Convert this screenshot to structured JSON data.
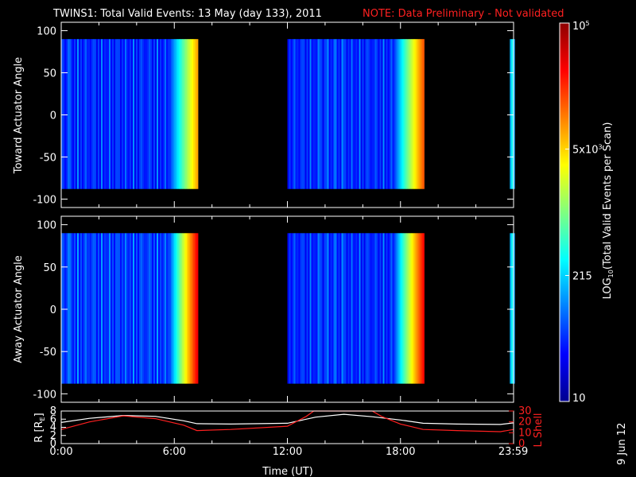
{
  "header": {
    "title": "TWINS1: Total Valid Events: 13 May (day 133), 2011",
    "note": "NOTE: Data Preliminary - Not validated"
  },
  "colors": {
    "background": "#000000",
    "foreground": "#ffffff",
    "note": "#ff2020",
    "orbit_r": "#ffffff",
    "orbit_lshell": "#ff2020"
  },
  "side_label": "9 Jun 12",
  "chart_data": [
    {
      "type": "heatmap",
      "panel": "toward",
      "ylabel": "Toward Actuator Angle",
      "ylim": [
        -110,
        110
      ],
      "yticks": [
        100,
        50,
        0,
        -50,
        -100
      ],
      "ytick_labels": [
        "100",
        "50",
        "0",
        "-50",
        "-100"
      ],
      "xlim": [
        0,
        24
      ],
      "data_angle_range": [
        -88,
        90
      ],
      "segments": [
        {
          "start": 0.0,
          "end": 7.2,
          "ramp_start": 5.7,
          "base": 0.15,
          "peak": 0.72
        },
        {
          "start": 12.0,
          "end": 19.2,
          "ramp_start": 17.6,
          "base": 0.15,
          "peak": 0.8
        },
        {
          "start": 23.8,
          "end": 24.0,
          "ramp_start": 24.0,
          "base": 0.3,
          "peak": 0.3
        }
      ]
    },
    {
      "type": "heatmap",
      "panel": "away",
      "ylabel": "Away Actuator Angle",
      "ylim": [
        -110,
        110
      ],
      "yticks": [
        100,
        50,
        0,
        -50,
        -100
      ],
      "ytick_labels": [
        "100",
        "50",
        "0",
        "-50",
        "-100"
      ],
      "xlim": [
        0,
        24
      ],
      "data_angle_range": [
        -88,
        90
      ],
      "segments": [
        {
          "start": 0.0,
          "end": 7.2,
          "ramp_start": 5.7,
          "base": 0.17,
          "peak": 0.9
        },
        {
          "start": 12.0,
          "end": 19.2,
          "ramp_start": 17.6,
          "base": 0.15,
          "peak": 0.88
        },
        {
          "start": 23.8,
          "end": 24.0,
          "ramp_start": 24.0,
          "base": 0.3,
          "peak": 0.3
        }
      ]
    },
    {
      "type": "line",
      "panel": "orbit",
      "ylabel": "R [R",
      "ylabel_sub": "E",
      "ylabel_close": "]",
      "ylim": [
        0,
        8
      ],
      "yticks": [
        0,
        2,
        4,
        6,
        8
      ],
      "ytick_labels": [
        "0",
        "2",
        "4",
        "6",
        "8"
      ],
      "y2label": "L Shell",
      "y2lim": [
        0,
        30
      ],
      "y2ticks": [
        0,
        10,
        20,
        30
      ],
      "y2tick_labels": [
        "0",
        "10",
        "20",
        "30"
      ],
      "xlabel": "Time (UT)",
      "xlim": [
        0,
        24
      ],
      "xticks": [
        0,
        6,
        12,
        18,
        23.983
      ],
      "xtick_labels": [
        "0:00",
        "6:00",
        "12:00",
        "18:00",
        "23:59"
      ],
      "series": [
        {
          "axis": "left",
          "x": [
            0,
            1.5,
            3.3,
            5,
            6.5,
            7.2,
            9,
            12,
            13.5,
            15,
            16.5,
            18,
            19.2,
            21,
            23.3,
            24
          ],
          "y": [
            5.2,
            6.2,
            6.9,
            6.7,
            5.6,
            4.9,
            4.8,
            5.0,
            6.5,
            7.2,
            6.6,
            5.8,
            5.0,
            4.8,
            4.7,
            5.1
          ]
        },
        {
          "axis": "right",
          "x": [
            0,
            1.5,
            3.3,
            5,
            6.5,
            7.2,
            9,
            12,
            13.0,
            13.4,
            16.5,
            17.0,
            18,
            19.2,
            21,
            23.3,
            24
          ],
          "y": [
            13,
            20,
            25.5,
            23,
            17,
            12,
            13,
            16,
            25,
            30,
            30,
            25,
            18,
            13,
            12,
            11,
            13
          ]
        }
      ]
    }
  ],
  "colorbar": {
    "label": "LOG",
    "label_sub": "10",
    "label_rest": "(Total Valid Events per Scan)",
    "ticks": [
      {
        "label": "10",
        "frac": 0.0
      },
      {
        "label": "215",
        "frac": 0.333
      },
      {
        "label": "5x10",
        "sup": "3",
        "frac": 0.667
      },
      {
        "label": "10",
        "sup": "5",
        "frac": 1.0
      }
    ]
  }
}
